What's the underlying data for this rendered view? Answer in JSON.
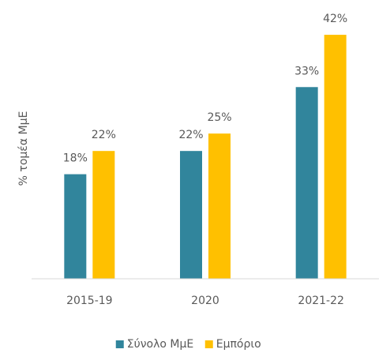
{
  "chart_data": {
    "type": "bar",
    "ylabel": "% τομέα ΜμΕ",
    "categories": [
      "2015-19",
      "2020",
      "2021-22"
    ],
    "series": [
      {
        "name": "Σύνολο ΜμΕ",
        "color": "#31859c",
        "values": [
          18,
          22,
          33
        ],
        "value_labels": [
          "18%",
          "22%",
          "33%"
        ]
      },
      {
        "name": "Εμπόριο",
        "color": "#ffc000",
        "values": [
          22,
          25,
          42
        ],
        "value_labels": [
          "22%",
          "25%",
          "42%"
        ]
      }
    ],
    "ylim": [
      0,
      45
    ],
    "legend": "bottom"
  }
}
